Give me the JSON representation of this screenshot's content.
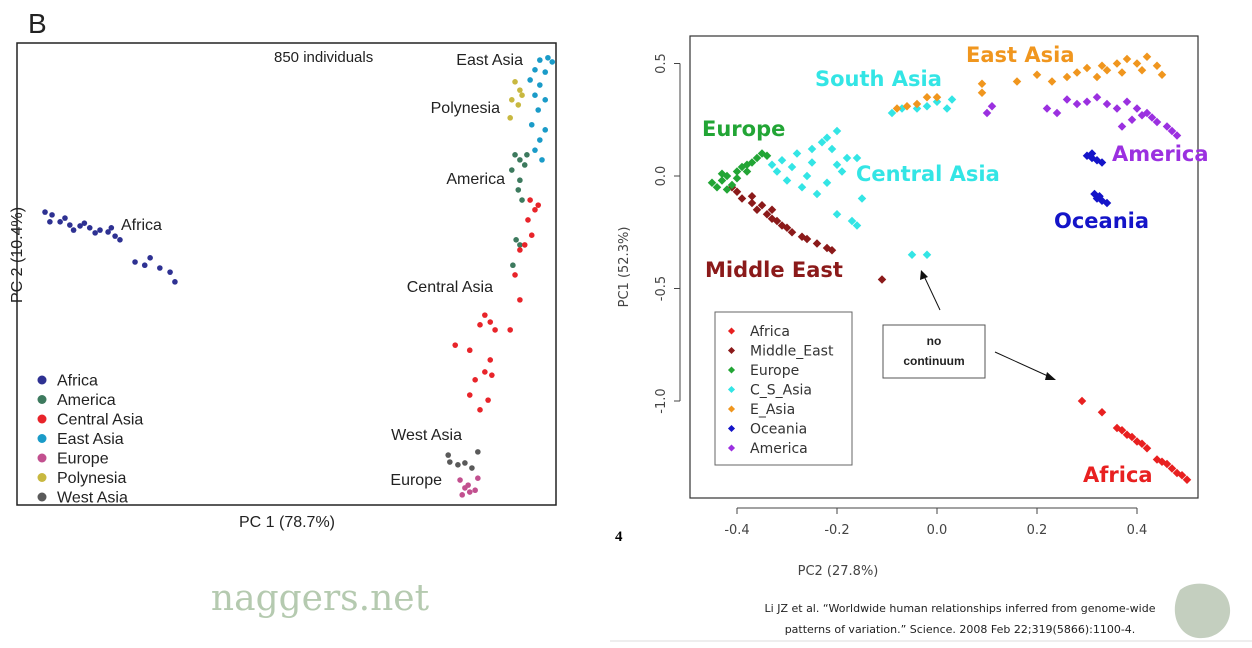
{
  "panel_letter": "B",
  "chart_data": [
    {
      "type": "scatter",
      "subtitle": "850 individuals",
      "xlabel": "PC 1 (78.7%)",
      "ylabel": "PC 2 (10.4%)",
      "ticks": "none",
      "xlim": [
        0,
        100
      ],
      "ylim": [
        0,
        100
      ],
      "grid": false,
      "legend_position": "bottom-left",
      "series": [
        {
          "name": "Africa",
          "color": "#2e3192",
          "points": [
            [
              5.2,
              63.4
            ],
            [
              6.5,
              62.8
            ],
            [
              8,
              61.3
            ],
            [
              9.8,
              60.6
            ],
            [
              11.7,
              60.4
            ],
            [
              13.5,
              60
            ],
            [
              15.4,
              59.5
            ],
            [
              16.9,
              59.1
            ],
            [
              18.2,
              58.2
            ],
            [
              19.1,
              57.4
            ],
            [
              21.9,
              52.6
            ],
            [
              23.7,
              51.9
            ],
            [
              26.5,
              51.3
            ],
            [
              28.4,
              50.4
            ],
            [
              29.3,
              48.3
            ],
            [
              6.1,
              61.3
            ],
            [
              8.9,
              62.1
            ],
            [
              14.5,
              58.9
            ],
            [
              24.7,
              53.5
            ],
            [
              10.5,
              59.5
            ],
            [
              12.5,
              61
            ],
            [
              17.5,
              60
            ]
          ]
        },
        {
          "name": "America",
          "color": "#3d7a5e",
          "points": [
            [
              92.4,
              75.8
            ],
            [
              93.3,
              74.7
            ],
            [
              94.2,
              73.6
            ],
            [
              91.8,
              72.5
            ],
            [
              93.3,
              70.3
            ],
            [
              93,
              68.2
            ],
            [
              93.7,
              66
            ],
            [
              92.6,
              57.4
            ],
            [
              93.3,
              56.3
            ],
            [
              92,
              51.9
            ],
            [
              94.6,
              75.8
            ]
          ]
        },
        {
          "name": "Central Asia",
          "color": "#e8242a",
          "points": [
            [
              95.2,
              66
            ],
            [
              96.1,
              63.9
            ],
            [
              94.8,
              61.7
            ],
            [
              95.5,
              58.4
            ],
            [
              94.2,
              56.3
            ],
            [
              96.7,
              64.9
            ],
            [
              92.4,
              49.8
            ],
            [
              93.3,
              44.4
            ],
            [
              91.5,
              37.9
            ],
            [
              86.8,
              41.1
            ],
            [
              87.8,
              39.6
            ],
            [
              85.9,
              39
            ],
            [
              88.7,
              37.9
            ],
            [
              84,
              33.5
            ],
            [
              87.8,
              31.4
            ],
            [
              86.8,
              28.8
            ],
            [
              88.1,
              28.1
            ],
            [
              85,
              27.1
            ],
            [
              84,
              23.8
            ],
            [
              87.4,
              22.7
            ],
            [
              85.9,
              20.6
            ],
            [
              81.3,
              34.6
            ],
            [
              93.3,
              55.2
            ]
          ]
        },
        {
          "name": "East Asia",
          "color": "#1a9bc8",
          "points": [
            [
              97,
              96.3
            ],
            [
              98.5,
              96.8
            ],
            [
              99.3,
              95.9
            ],
            [
              96.1,
              94.2
            ],
            [
              98,
              93.7
            ],
            [
              95.2,
              92
            ],
            [
              97,
              90.9
            ],
            [
              96.1,
              88.7
            ],
            [
              98,
              87.7
            ],
            [
              96.7,
              85.5
            ],
            [
              95.5,
              82.3
            ],
            [
              98,
              81.2
            ],
            [
              97,
              79
            ],
            [
              96.1,
              76.8
            ],
            [
              97.4,
              74.7
            ]
          ]
        },
        {
          "name": "Europe",
          "color": "#c2508f",
          "points": [
            [
              82.2,
              5.4
            ],
            [
              83.7,
              4.3
            ],
            [
              85,
              3.2
            ],
            [
              82.6,
              2.2
            ],
            [
              84,
              2.8
            ],
            [
              85.5,
              5.8
            ],
            [
              83.1,
              3.7
            ]
          ]
        },
        {
          "name": "Polynesia",
          "color": "#c8b840",
          "points": [
            [
              92.4,
              91.6
            ],
            [
              93.3,
              89.8
            ],
            [
              91.8,
              87.7
            ],
            [
              93,
              86.6
            ],
            [
              93.7,
              88.7
            ],
            [
              91.5,
              83.8
            ]
          ]
        },
        {
          "name": "West Asia",
          "color": "#5a5a5a",
          "points": [
            [
              80.3,
              9.3
            ],
            [
              81.8,
              8.7
            ],
            [
              83.1,
              9.1
            ],
            [
              84.4,
              8
            ],
            [
              80,
              10.8
            ],
            [
              85.5,
              11.5
            ]
          ]
        }
      ],
      "annotations": [
        "East Asia",
        "Polynesia",
        "America",
        "Africa",
        "Central Asia",
        "West Asia",
        "Europe"
      ]
    },
    {
      "type": "scatter",
      "xlabel": "PC2 (27.8%)",
      "ylabel": "PC1 (52.3%)",
      "xlim": [
        -0.494,
        0.522
      ],
      "ylim": [
        -1.43,
        0.62
      ],
      "xticks": [
        "-0.4",
        "-0.2",
        "0.0",
        "0.2",
        "0.4"
      ],
      "yticks": [
        "0.5",
        "0.0",
        "-0.5",
        "-1.0"
      ],
      "grid": false,
      "legend_position": "bottom-left",
      "series": [
        {
          "name": "Africa",
          "color": "#e82020",
          "points": [
            [
              0.29,
              -1.0
            ],
            [
              0.33,
              -1.05
            ],
            [
              0.36,
              -1.12
            ],
            [
              0.37,
              -1.13
            ],
            [
              0.38,
              -1.15
            ],
            [
              0.39,
              -1.16
            ],
            [
              0.4,
              -1.18
            ],
            [
              0.41,
              -1.19
            ],
            [
              0.42,
              -1.21
            ],
            [
              0.44,
              -1.26
            ],
            [
              0.45,
              -1.27
            ],
            [
              0.46,
              -1.28
            ],
            [
              0.47,
              -1.3
            ],
            [
              0.48,
              -1.32
            ],
            [
              0.49,
              -1.33
            ],
            [
              0.5,
              -1.35
            ]
          ]
        },
        {
          "name": "Middle_East",
          "color": "#8b1a1a",
          "points": [
            [
              -0.41,
              -0.05
            ],
            [
              -0.4,
              -0.07
            ],
            [
              -0.39,
              -0.1
            ],
            [
              -0.37,
              -0.12
            ],
            [
              -0.36,
              -0.15
            ],
            [
              -0.35,
              -0.13
            ],
            [
              -0.34,
              -0.17
            ],
            [
              -0.33,
              -0.19
            ],
            [
              -0.32,
              -0.2
            ],
            [
              -0.31,
              -0.22
            ],
            [
              -0.3,
              -0.23
            ],
            [
              -0.29,
              -0.25
            ],
            [
              -0.27,
              -0.27
            ],
            [
              -0.26,
              -0.28
            ],
            [
              -0.24,
              -0.3
            ],
            [
              -0.22,
              -0.32
            ],
            [
              -0.21,
              -0.33
            ],
            [
              -0.11,
              -0.46
            ],
            [
              -0.37,
              -0.09
            ],
            [
              -0.33,
              -0.15
            ]
          ]
        },
        {
          "name": "Europe",
          "color": "#22a535",
          "points": [
            [
              -0.45,
              -0.03
            ],
            [
              -0.44,
              -0.05
            ],
            [
              -0.43,
              -0.02
            ],
            [
              -0.42,
              0.0
            ],
            [
              -0.41,
              -0.04
            ],
            [
              -0.4,
              0.02
            ],
            [
              -0.39,
              0.04
            ],
            [
              -0.38,
              0.05
            ],
            [
              -0.37,
              0.06
            ],
            [
              -0.36,
              0.08
            ],
            [
              -0.35,
              0.1
            ],
            [
              -0.34,
              0.09
            ],
            [
              -0.42,
              -0.06
            ],
            [
              -0.4,
              -0.01
            ],
            [
              -0.43,
              0.01
            ],
            [
              -0.38,
              0.02
            ]
          ]
        },
        {
          "name": "C_S_Asia",
          "color": "#33e5e5",
          "points": [
            [
              -0.33,
              0.05
            ],
            [
              -0.32,
              0.02
            ],
            [
              -0.31,
              0.07
            ],
            [
              -0.3,
              -0.02
            ],
            [
              -0.29,
              0.04
            ],
            [
              -0.28,
              0.1
            ],
            [
              -0.27,
              -0.05
            ],
            [
              -0.26,
              0.0
            ],
            [
              -0.25,
              0.06
            ],
            [
              -0.24,
              -0.08
            ],
            [
              -0.23,
              0.15
            ],
            [
              -0.22,
              0.17
            ],
            [
              -0.21,
              0.12
            ],
            [
              -0.2,
              0.05
            ],
            [
              -0.19,
              0.02
            ],
            [
              -0.18,
              0.08
            ],
            [
              -0.22,
              -0.03
            ],
            [
              -0.25,
              0.12
            ],
            [
              -0.2,
              0.2
            ],
            [
              -0.16,
              0.08
            ],
            [
              -0.17,
              -0.2
            ],
            [
              -0.16,
              -0.22
            ],
            [
              -0.2,
              -0.17
            ],
            [
              -0.15,
              -0.1
            ],
            [
              -0.09,
              0.28
            ],
            [
              -0.07,
              0.3
            ],
            [
              -0.04,
              0.3
            ],
            [
              -0.02,
              0.31
            ],
            [
              0.0,
              0.33
            ],
            [
              0.02,
              0.3
            ],
            [
              0.03,
              0.34
            ],
            [
              -0.05,
              -0.35
            ],
            [
              -0.02,
              -0.35
            ]
          ]
        },
        {
          "name": "E_Asia",
          "color": "#f0961e",
          "points": [
            [
              -0.08,
              0.3
            ],
            [
              -0.06,
              0.31
            ],
            [
              -0.04,
              0.32
            ],
            [
              -0.02,
              0.35
            ],
            [
              0.0,
              0.35
            ],
            [
              0.09,
              0.37
            ],
            [
              0.09,
              0.41
            ],
            [
              0.16,
              0.42
            ],
            [
              0.2,
              0.45
            ],
            [
              0.23,
              0.42
            ],
            [
              0.26,
              0.44
            ],
            [
              0.28,
              0.46
            ],
            [
              0.3,
              0.48
            ],
            [
              0.32,
              0.44
            ],
            [
              0.34,
              0.47
            ],
            [
              0.36,
              0.5
            ],
            [
              0.38,
              0.52
            ],
            [
              0.4,
              0.5
            ],
            [
              0.42,
              0.53
            ],
            [
              0.44,
              0.49
            ],
            [
              0.45,
              0.45
            ],
            [
              0.37,
              0.46
            ],
            [
              0.33,
              0.49
            ],
            [
              0.41,
              0.47
            ]
          ]
        },
        {
          "name": "Oceania",
          "color": "#1414c8",
          "points": [
            [
              0.3,
              0.09
            ],
            [
              0.31,
              0.08
            ],
            [
              0.32,
              0.07
            ],
            [
              0.33,
              0.06
            ],
            [
              0.31,
              0.1
            ],
            [
              0.315,
              -0.08
            ],
            [
              0.32,
              -0.1
            ],
            [
              0.33,
              -0.11
            ],
            [
              0.34,
              -0.12
            ],
            [
              0.325,
              -0.09
            ]
          ]
        },
        {
          "name": "America",
          "color": "#9b30e0",
          "points": [
            [
              0.11,
              0.31
            ],
            [
              0.1,
              0.28
            ],
            [
              0.22,
              0.3
            ],
            [
              0.24,
              0.28
            ],
            [
              0.26,
              0.34
            ],
            [
              0.28,
              0.32
            ],
            [
              0.3,
              0.33
            ],
            [
              0.32,
              0.35
            ],
            [
              0.34,
              0.32
            ],
            [
              0.36,
              0.3
            ],
            [
              0.38,
              0.33
            ],
            [
              0.4,
              0.3
            ],
            [
              0.42,
              0.28
            ],
            [
              0.43,
              0.26
            ],
            [
              0.44,
              0.24
            ],
            [
              0.46,
              0.22
            ],
            [
              0.47,
              0.2
            ],
            [
              0.48,
              0.18
            ],
            [
              0.37,
              0.22
            ],
            [
              0.39,
              0.25
            ],
            [
              0.41,
              0.27
            ]
          ]
        }
      ],
      "annotations": [
        {
          "text": "East Asia",
          "color": "#f0961e"
        },
        {
          "text": "South Asia",
          "color": "#33e5e5"
        },
        {
          "text": "Europe",
          "color": "#22a535"
        },
        {
          "text": "Central Asia",
          "color": "#33e5e5"
        },
        {
          "text": "America",
          "color": "#9b30e0"
        },
        {
          "text": "Oceania",
          "color": "#1414c8"
        },
        {
          "text": "Middle East",
          "color": "#8b1a1a"
        },
        {
          "text": "Africa",
          "color": "#e82020"
        }
      ],
      "callout": {
        "line1": "no",
        "line2": "continuum"
      }
    }
  ],
  "page_number": "4",
  "citation": {
    "line1": "Li JZ et al. “Worldwide human relationships inferred from genome-wide",
    "line2": "patterns of variation.” Science. 2008 Feb 22;319(5866):1100-4."
  },
  "watermark": "naggers.net"
}
